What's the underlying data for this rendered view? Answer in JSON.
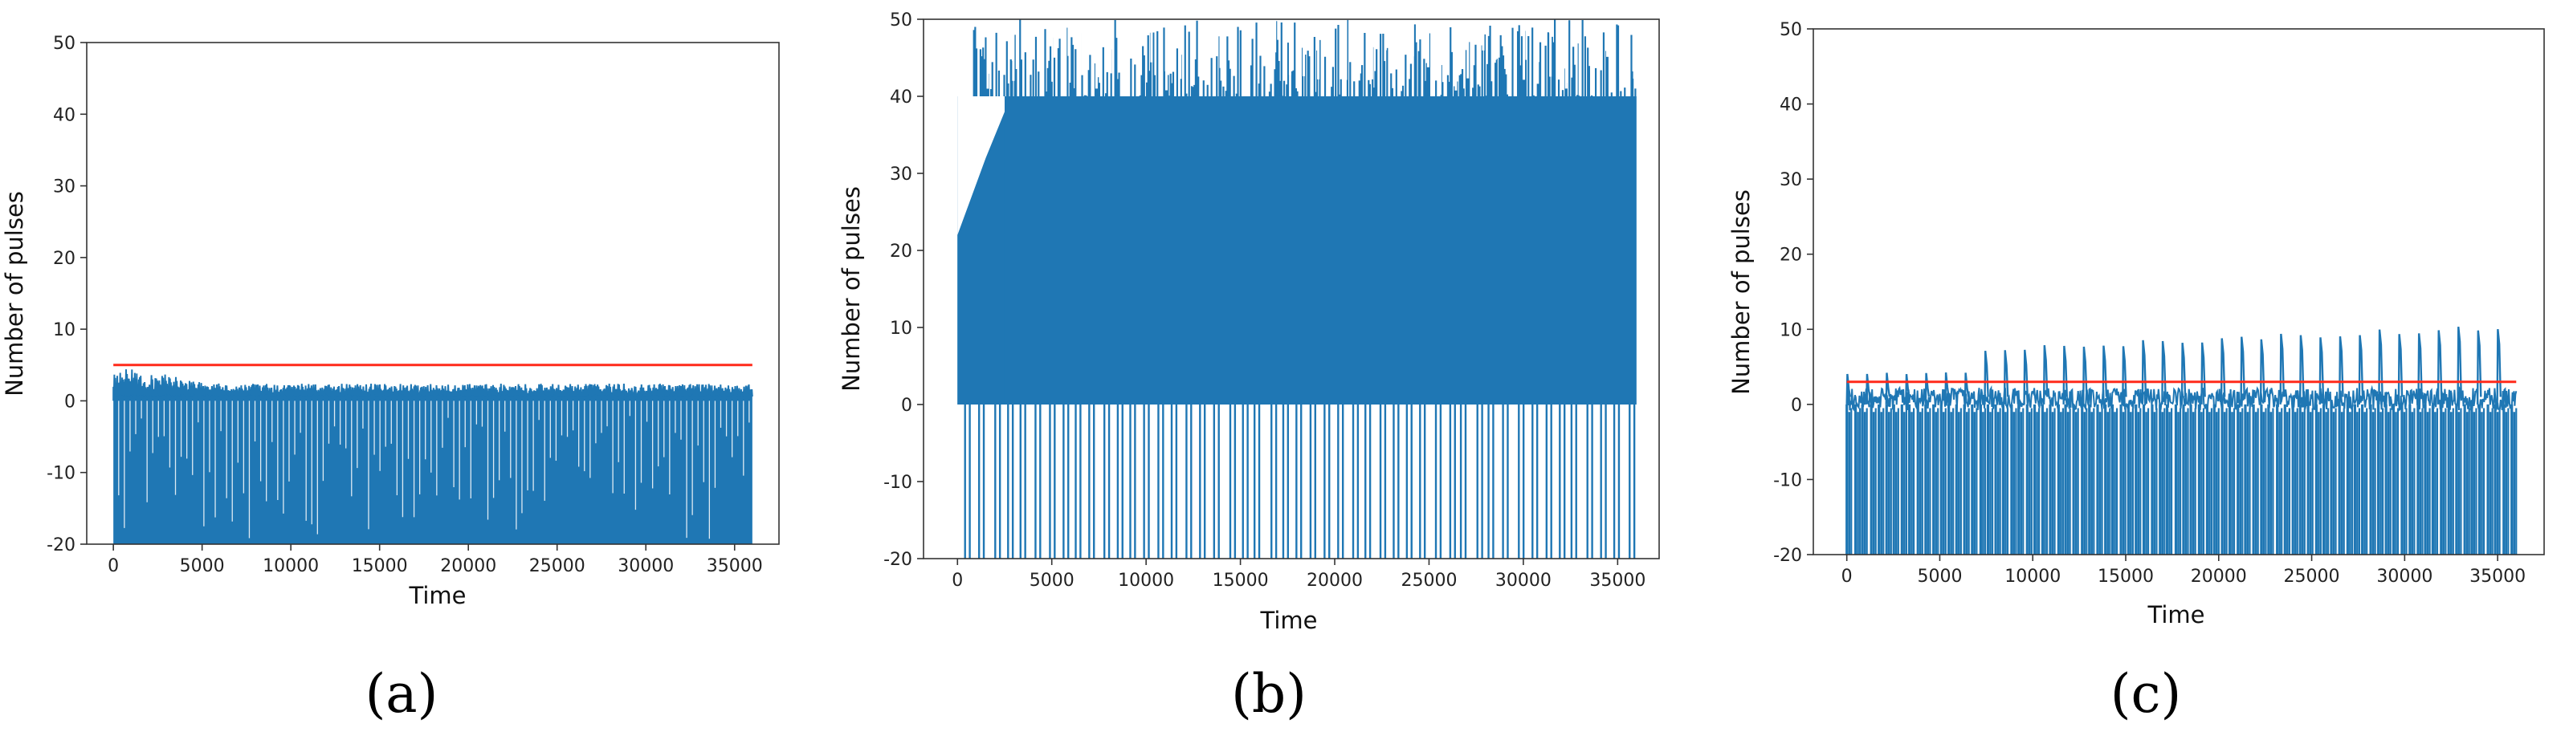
{
  "colors": {
    "series": "#1f77b4",
    "threshold": "#ff2a1a",
    "axes": "#333333"
  },
  "chart_data": [
    {
      "type": "line",
      "panel": "(a)",
      "xlabel": "Time",
      "ylabel": "Number of pulses",
      "xlim": [
        -1500,
        37500
      ],
      "ylim": [
        -20,
        50
      ],
      "xticks": [
        0,
        5000,
        10000,
        15000,
        20000,
        25000,
        30000,
        35000
      ],
      "yticks": [
        -20,
        -10,
        0,
        10,
        20,
        30,
        40,
        50
      ],
      "series": [
        {
          "description": "pulse count, dense oscillation",
          "x_range": [
            0,
            36000
          ],
          "y_min": -20,
          "y_max_start": 4,
          "y_max_end": 2,
          "band_top": 1
        },
        {
          "description": "threshold line",
          "x": [
            0,
            36000
          ],
          "y": [
            5,
            5
          ]
        }
      ]
    },
    {
      "type": "line",
      "panel": "(b)",
      "xlabel": "Time",
      "ylabel": "Number of pulses",
      "xlim": [
        -1800,
        37200
      ],
      "ylim": [
        -20,
        50
      ],
      "xticks": [
        0,
        5000,
        10000,
        15000,
        20000,
        25000,
        30000,
        35000
      ],
      "yticks": [
        -20,
        -10,
        0,
        10,
        20,
        30,
        40,
        50
      ],
      "series": [
        {
          "description": "pulse count, saturated oscillation",
          "x_range": [
            0,
            36000
          ],
          "y_min": -20,
          "y_max": 50,
          "band": [
            0,
            40
          ]
        }
      ]
    },
    {
      "type": "line",
      "panel": "(c)",
      "xlabel": "Time",
      "ylabel": "Number of pulses",
      "xlim": [
        -1800,
        37500
      ],
      "ylim": [
        -20,
        50
      ],
      "xticks": [
        0,
        5000,
        10000,
        15000,
        20000,
        25000,
        30000,
        35000
      ],
      "yticks": [
        -20,
        -10,
        0,
        10,
        20,
        30,
        40,
        50
      ],
      "series": [
        {
          "description": "pulse count, growing peaks",
          "x_range": [
            0,
            36000
          ],
          "y_min": -20,
          "peak_start": 4,
          "peak_end": 10
        },
        {
          "description": "threshold line",
          "x": [
            0,
            36000
          ],
          "y": [
            3,
            3
          ]
        }
      ]
    }
  ],
  "captions": {
    "a": "(a)",
    "b": "(b)",
    "c": "(c)"
  }
}
